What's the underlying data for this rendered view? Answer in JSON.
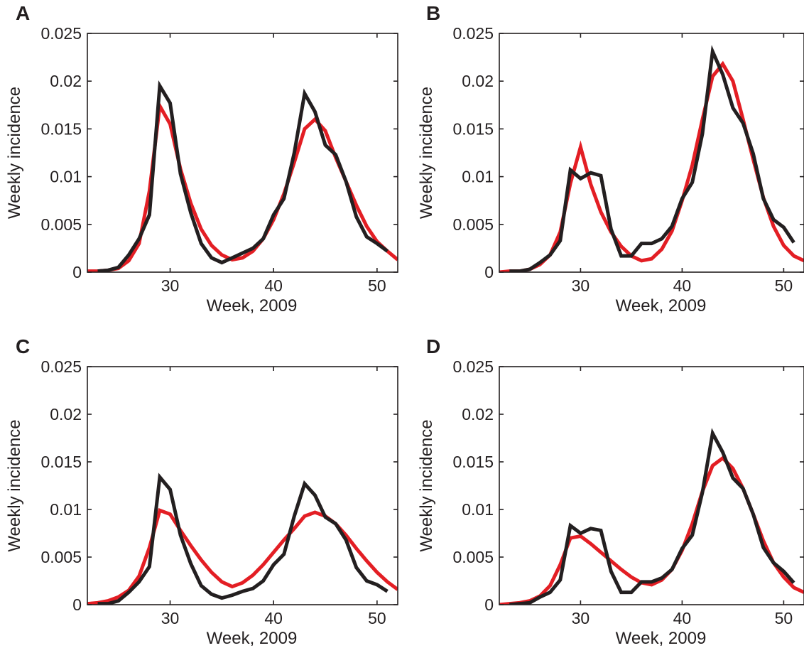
{
  "chart_data": [
    {
      "panel_label": "A",
      "type": "line",
      "xlabel": "Week, 2009",
      "ylabel": "Weekly incidence",
      "xlim": [
        22,
        52
      ],
      "ylim": [
        0,
        0.025
      ],
      "xticks": [
        30,
        40,
        50
      ],
      "yticks": [
        0,
        0.005,
        0.01,
        0.015,
        0.02,
        0.025
      ],
      "ytick_labels": [
        "0",
        "0.005",
        "0.01",
        "0.015",
        "0.02",
        "0.025"
      ],
      "series": [
        {
          "color": "#e31e24",
          "x": [
            22,
            23,
            24,
            25,
            26,
            27,
            28,
            29,
            30,
            31,
            32,
            33,
            34,
            35,
            36,
            37,
            38,
            39,
            40,
            41,
            42,
            43,
            44,
            45,
            46,
            47,
            48,
            49,
            50,
            51,
            52
          ],
          "y": [
            0.0001,
            0.0001,
            0.0002,
            0.0004,
            0.0012,
            0.003,
            0.0085,
            0.0174,
            0.0155,
            0.0108,
            0.0072,
            0.0045,
            0.0028,
            0.0018,
            0.0013,
            0.0015,
            0.0022,
            0.0035,
            0.0055,
            0.0082,
            0.0115,
            0.015,
            0.016,
            0.0148,
            0.012,
            0.0095,
            0.007,
            0.0048,
            0.0032,
            0.0022,
            0.0013
          ]
        },
        {
          "color": "#231f20",
          "x": [
            23,
            24,
            25,
            26,
            27,
            28,
            29,
            30,
            31,
            32,
            33,
            34,
            35,
            36,
            37,
            38,
            39,
            40,
            41,
            42,
            43,
            44,
            45,
            46,
            47,
            48,
            49,
            50,
            51
          ],
          "y": [
            0.0001,
            0.0002,
            0.0005,
            0.0018,
            0.0035,
            0.006,
            0.0195,
            0.0177,
            0.0103,
            0.0062,
            0.003,
            0.0015,
            0.001,
            0.0015,
            0.002,
            0.0025,
            0.0035,
            0.006,
            0.0077,
            0.0125,
            0.0187,
            0.0168,
            0.0133,
            0.0123,
            0.0095,
            0.0058,
            0.0037,
            0.003,
            0.0022
          ]
        }
      ]
    },
    {
      "panel_label": "B",
      "type": "line",
      "xlabel": "Week, 2009",
      "ylabel": "Weekly incidence",
      "xlim": [
        22,
        52
      ],
      "ylim": [
        0,
        0.025
      ],
      "xticks": [
        30,
        40,
        50
      ],
      "yticks": [
        0,
        0.005,
        0.01,
        0.015,
        0.02,
        0.025
      ],
      "ytick_labels": [
        "0",
        "0.005",
        "0.01",
        "0.015",
        "0.02",
        "0.025"
      ],
      "series": [
        {
          "color": "#e31e24",
          "x": [
            22,
            23,
            24,
            25,
            26,
            27,
            28,
            29,
            30,
            31,
            32,
            33,
            34,
            35,
            36,
            37,
            38,
            39,
            40,
            41,
            42,
            43,
            44,
            45,
            46,
            47,
            48,
            49,
            50,
            51,
            52
          ],
          "y": [
            0,
            0.0001,
            0.0001,
            0.0003,
            0.0008,
            0.0018,
            0.0042,
            0.0093,
            0.0131,
            0.0092,
            0.0063,
            0.0042,
            0.0027,
            0.0017,
            0.0012,
            0.0014,
            0.0024,
            0.0043,
            0.0075,
            0.0112,
            0.016,
            0.0205,
            0.0218,
            0.02,
            0.016,
            0.0118,
            0.0078,
            0.0048,
            0.0028,
            0.0017,
            0.0012
          ]
        },
        {
          "color": "#231f20",
          "x": [
            23,
            24,
            25,
            26,
            27,
            28,
            29,
            30,
            31,
            32,
            33,
            34,
            35,
            36,
            37,
            38,
            39,
            40,
            41,
            42,
            43,
            44,
            45,
            46,
            47,
            48,
            49,
            50,
            51
          ],
          "y": [
            0.0001,
            0.0001,
            0.0003,
            0.001,
            0.0018,
            0.0033,
            0.0107,
            0.0098,
            0.0104,
            0.0101,
            0.0045,
            0.0017,
            0.0017,
            0.003,
            0.003,
            0.0035,
            0.0048,
            0.0077,
            0.0094,
            0.0145,
            0.0231,
            0.0207,
            0.0172,
            0.0156,
            0.0124,
            0.0077,
            0.0055,
            0.0047,
            0.0031
          ]
        }
      ]
    },
    {
      "panel_label": "C",
      "type": "line",
      "xlabel": "Week, 2009",
      "ylabel": "Weekly incidence",
      "xlim": [
        22,
        52
      ],
      "ylim": [
        0,
        0.025
      ],
      "xticks": [
        30,
        40,
        50
      ],
      "yticks": [
        0,
        0.005,
        0.01,
        0.015,
        0.02,
        0.025
      ],
      "ytick_labels": [
        "0",
        "0.005",
        "0.01",
        "0.015",
        "0.02",
        "0.025"
      ],
      "series": [
        {
          "color": "#e31e24",
          "x": [
            22,
            23,
            24,
            25,
            26,
            27,
            28,
            29,
            30,
            31,
            32,
            33,
            34,
            35,
            36,
            37,
            38,
            39,
            40,
            41,
            42,
            43,
            44,
            45,
            46,
            47,
            48,
            49,
            50,
            51,
            52
          ],
          "y": [
            0.0001,
            0.0002,
            0.0004,
            0.0008,
            0.0015,
            0.003,
            0.006,
            0.0099,
            0.0095,
            0.0078,
            0.0062,
            0.0047,
            0.0034,
            0.0024,
            0.0019,
            0.0023,
            0.0031,
            0.0042,
            0.0055,
            0.0068,
            0.008,
            0.0093,
            0.0097,
            0.0093,
            0.0085,
            0.0073,
            0.0059,
            0.0046,
            0.0034,
            0.0024,
            0.0016
          ]
        },
        {
          "color": "#231f20",
          "x": [
            23,
            24,
            25,
            26,
            27,
            28,
            29,
            30,
            31,
            32,
            33,
            34,
            35,
            36,
            37,
            38,
            39,
            40,
            41,
            42,
            43,
            44,
            45,
            46,
            47,
            48,
            49,
            50,
            51
          ],
          "y": [
            0.0001,
            0.0001,
            0.0004,
            0.0013,
            0.0024,
            0.004,
            0.0134,
            0.0121,
            0.0073,
            0.0043,
            0.002,
            0.0011,
            0.0007,
            0.001,
            0.0014,
            0.0017,
            0.0025,
            0.0042,
            0.0053,
            0.0093,
            0.0127,
            0.0115,
            0.0092,
            0.0085,
            0.0068,
            0.0039,
            0.0025,
            0.0021,
            0.0014
          ]
        }
      ]
    },
    {
      "panel_label": "D",
      "type": "line",
      "xlabel": "Week, 2009",
      "ylabel": "Weekly incidence",
      "xlim": [
        22,
        52
      ],
      "ylim": [
        0,
        0.025
      ],
      "xticks": [
        30,
        40,
        50
      ],
      "yticks": [
        0,
        0.005,
        0.01,
        0.015,
        0.02,
        0.025
      ],
      "ytick_labels": [
        "0",
        "0.005",
        "0.01",
        "0.015",
        "0.02",
        "0.025"
      ],
      "series": [
        {
          "color": "#e31e24",
          "x": [
            22,
            23,
            24,
            25,
            26,
            27,
            28,
            29,
            30,
            31,
            32,
            33,
            34,
            35,
            36,
            37,
            38,
            39,
            40,
            41,
            42,
            43,
            44,
            45,
            46,
            47,
            48,
            49,
            50,
            51,
            52
          ],
          "y": [
            0,
            0.0001,
            0.0002,
            0.0004,
            0.0009,
            0.002,
            0.0042,
            0.007,
            0.0072,
            0.0064,
            0.0055,
            0.0046,
            0.0037,
            0.0029,
            0.0023,
            0.0021,
            0.0026,
            0.0037,
            0.0057,
            0.0085,
            0.0119,
            0.0146,
            0.0154,
            0.0143,
            0.0122,
            0.0095,
            0.0067,
            0.0044,
            0.0029,
            0.0018,
            0.0013
          ]
        },
        {
          "color": "#231f20",
          "x": [
            23,
            24,
            25,
            26,
            27,
            28,
            29,
            30,
            31,
            32,
            33,
            34,
            35,
            36,
            37,
            38,
            39,
            40,
            41,
            42,
            43,
            44,
            45,
            46,
            47,
            48,
            49,
            50,
            51
          ],
          "y": [
            0,
            0.0001,
            0.0002,
            0.0008,
            0.0013,
            0.0026,
            0.0083,
            0.0075,
            0.008,
            0.0078,
            0.0035,
            0.0013,
            0.0013,
            0.0024,
            0.0024,
            0.0028,
            0.0037,
            0.0059,
            0.0073,
            0.0118,
            0.018,
            0.016,
            0.0133,
            0.0122,
            0.0095,
            0.006,
            0.0044,
            0.0035,
            0.0023
          ]
        }
      ]
    }
  ]
}
